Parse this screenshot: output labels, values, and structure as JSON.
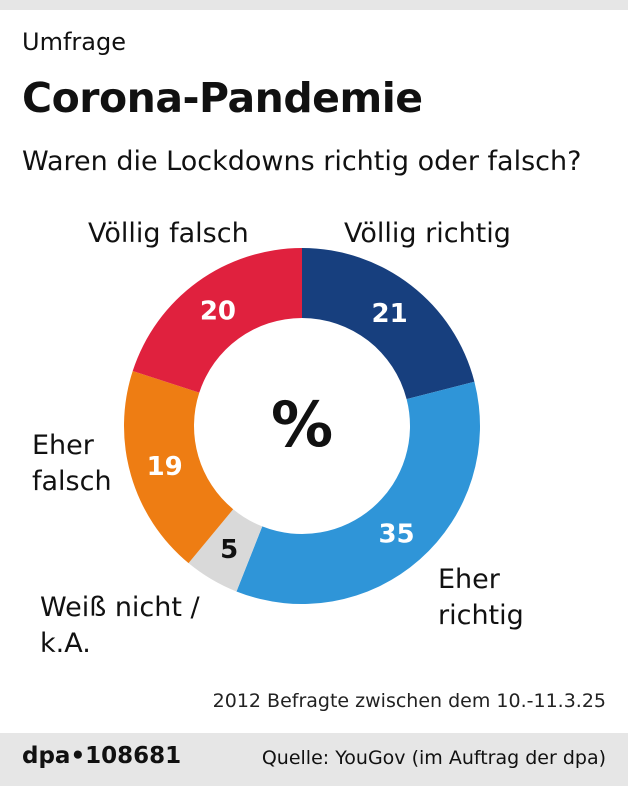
{
  "header": {
    "kicker": "Umfrage",
    "title": "Corona-Pandemie",
    "question": "Waren die Lockdowns richtig oder falsch?"
  },
  "chart_data": {
    "type": "pie",
    "variant": "donut",
    "unit": "%",
    "center_label": "%",
    "slices": [
      {
        "label": "Völlig richtig",
        "value": 21,
        "color": "#173f7e"
      },
      {
        "label": "Eher richtig",
        "value": 35,
        "color": "#2f95d8"
      },
      {
        "label": "Weiß nicht / k.A.",
        "value": 5,
        "color": "#d9d9d9"
      },
      {
        "label": "Eher falsch",
        "value": 19,
        "color": "#ee7d13"
      },
      {
        "label": "Völlig falsch",
        "value": 20,
        "color": "#e0213e"
      }
    ]
  },
  "labels": {
    "voellig_falsch": "Völlig falsch",
    "voellig_richtig": "Völlig richtig",
    "eher_falsch_1": "Eher",
    "eher_falsch_2": "falsch",
    "eher_richtig_1": "Eher",
    "eher_richtig_2": "richtig",
    "weiss_nicht_1": "Weiß nicht /",
    "weiss_nicht_2": "k.A."
  },
  "note": "2012 Befragte zwischen dem 10.-11.3.25",
  "footer": {
    "id": "dpa•108681",
    "source": "Quelle: YouGov (im Auftrag der dpa)"
  }
}
